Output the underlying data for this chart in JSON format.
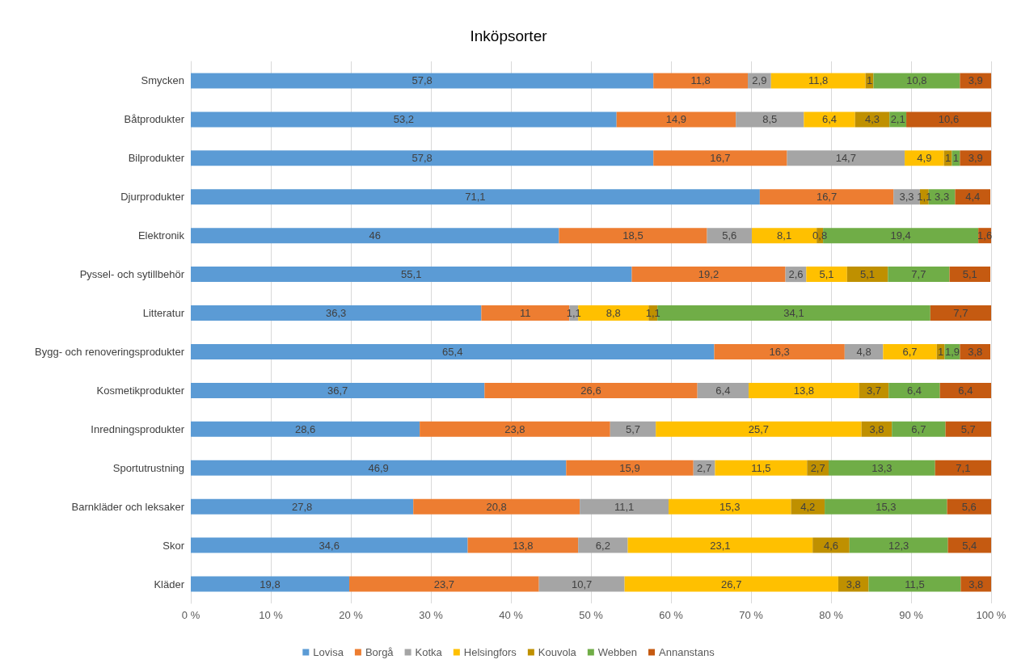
{
  "chart_data": {
    "type": "bar",
    "orientation": "horizontal",
    "stacked": true,
    "title": "Inköpsorter",
    "categories": [
      "Smycken",
      "Båtprodukter",
      "Bilprodukter",
      "Djurprodukter",
      "Elektronik",
      "Pyssel- och sytillbehör",
      "Litteratur",
      "Bygg- och renoveringsprodukter",
      "Kosmetikprodukter",
      "Inredningsprodukter",
      "Sportutrustning",
      "Barnkläder och leksaker",
      "Skor",
      "Kläder"
    ],
    "series": [
      {
        "name": "Lovisa",
        "color": "#5b9bd5",
        "values": [
          57.8,
          53.2,
          57.8,
          71.1,
          46,
          55.1,
          36.3,
          65.4,
          36.7,
          28.6,
          46.9,
          27.8,
          34.6,
          19.8
        ],
        "value_labels": [
          "57,8",
          "53,2",
          "57,8",
          "71,1",
          "46",
          "55,1",
          "36,3",
          "65,4",
          "36,7",
          "28,6",
          "46,9",
          "27,8",
          "34,6",
          "19,8"
        ]
      },
      {
        "name": "Borgå",
        "color": "#ed7d31",
        "values": [
          11.8,
          14.9,
          16.7,
          16.7,
          18.5,
          19.2,
          11,
          16.3,
          26.6,
          23.8,
          15.9,
          20.8,
          13.8,
          23.7
        ],
        "value_labels": [
          "11,8",
          "14,9",
          "16,7",
          "16,7",
          "18,5",
          "19,2",
          "11",
          "16,3",
          "26,6",
          "23,8",
          "15,9",
          "20,8",
          "13,8",
          "23,7"
        ]
      },
      {
        "name": "Kotka",
        "color": "#a5a5a5",
        "values": [
          2.9,
          8.5,
          14.7,
          3.3,
          5.6,
          2.6,
          1.1,
          4.8,
          6.4,
          5.7,
          2.7,
          11.1,
          6.2,
          10.7
        ],
        "value_labels": [
          "2,9",
          "8,5",
          "14,7",
          "3,3",
          "5,6",
          "2,6",
          "1,1",
          "4,8",
          "6,4",
          "5,7",
          "2,7",
          "11,1",
          "6,2",
          "10,7"
        ]
      },
      {
        "name": "Helsingfors",
        "color": "#ffc000",
        "values": [
          11.8,
          6.4,
          4.9,
          null,
          8.1,
          5.1,
          8.8,
          6.7,
          13.8,
          25.7,
          11.5,
          15.3,
          23.1,
          26.7
        ],
        "value_labels": [
          "11,8",
          "6,4",
          "4,9",
          null,
          "8,1",
          "5,1",
          "8,8",
          "6,7",
          "13,8",
          "25,7",
          "11,5",
          "15,3",
          "23,1",
          "26,7"
        ]
      },
      {
        "name": "Kouvola",
        "color": "#bf9000",
        "values": [
          1,
          4.3,
          1,
          1.1,
          0.8,
          5.1,
          1.1,
          1,
          3.7,
          3.8,
          2.7,
          4.2,
          4.6,
          3.8
        ],
        "value_labels": [
          "1",
          "4,3",
          "1",
          "1,1",
          "0,8",
          "5,1",
          "1,1",
          "1",
          "3,7",
          "3,8",
          "2,7",
          "4,2",
          "4,6",
          "3,8"
        ]
      },
      {
        "name": "Webben",
        "color": "#70ad47",
        "values": [
          10.8,
          2.1,
          1,
          3.3,
          19.4,
          7.7,
          34.1,
          1.9,
          6.4,
          6.7,
          13.3,
          15.3,
          12.3,
          11.5
        ],
        "value_labels": [
          "10,8",
          "2,1",
          "1",
          "3,3",
          "19,4",
          "7,7",
          "34,1",
          "1,9",
          "6,4",
          "6,7",
          "13,3",
          "15,3",
          "12,3",
          "11,5"
        ]
      },
      {
        "name": "Annanstans",
        "color": "#c55a11",
        "values": [
          3.9,
          10.6,
          3.9,
          4.4,
          1.6,
          5.1,
          7.7,
          3.8,
          6.4,
          5.7,
          7.1,
          5.6,
          5.4,
          3.8
        ],
        "value_labels": [
          "3,9",
          "10,6",
          "3,9",
          "4,4",
          "1,6",
          "5,1",
          "7,7",
          "3,8",
          "6,4",
          "5,7",
          "7,1",
          "5,6",
          "5,4",
          "3,8"
        ]
      }
    ],
    "xlim": [
      0,
      100
    ],
    "xticks": [
      {
        "value": 0,
        "label": "0 %"
      },
      {
        "value": 10,
        "label": "10 %"
      },
      {
        "value": 20,
        "label": "20 %"
      },
      {
        "value": 30,
        "label": "30 %"
      },
      {
        "value": 40,
        "label": "40 %"
      },
      {
        "value": 50,
        "label": "50 %"
      },
      {
        "value": 60,
        "label": "60 %"
      },
      {
        "value": 70,
        "label": "70 %"
      },
      {
        "value": 80,
        "label": "80 %"
      },
      {
        "value": 90,
        "label": "90 %"
      },
      {
        "value": 100,
        "label": "100 %"
      }
    ],
    "grid": "x",
    "legend": "bottom"
  }
}
